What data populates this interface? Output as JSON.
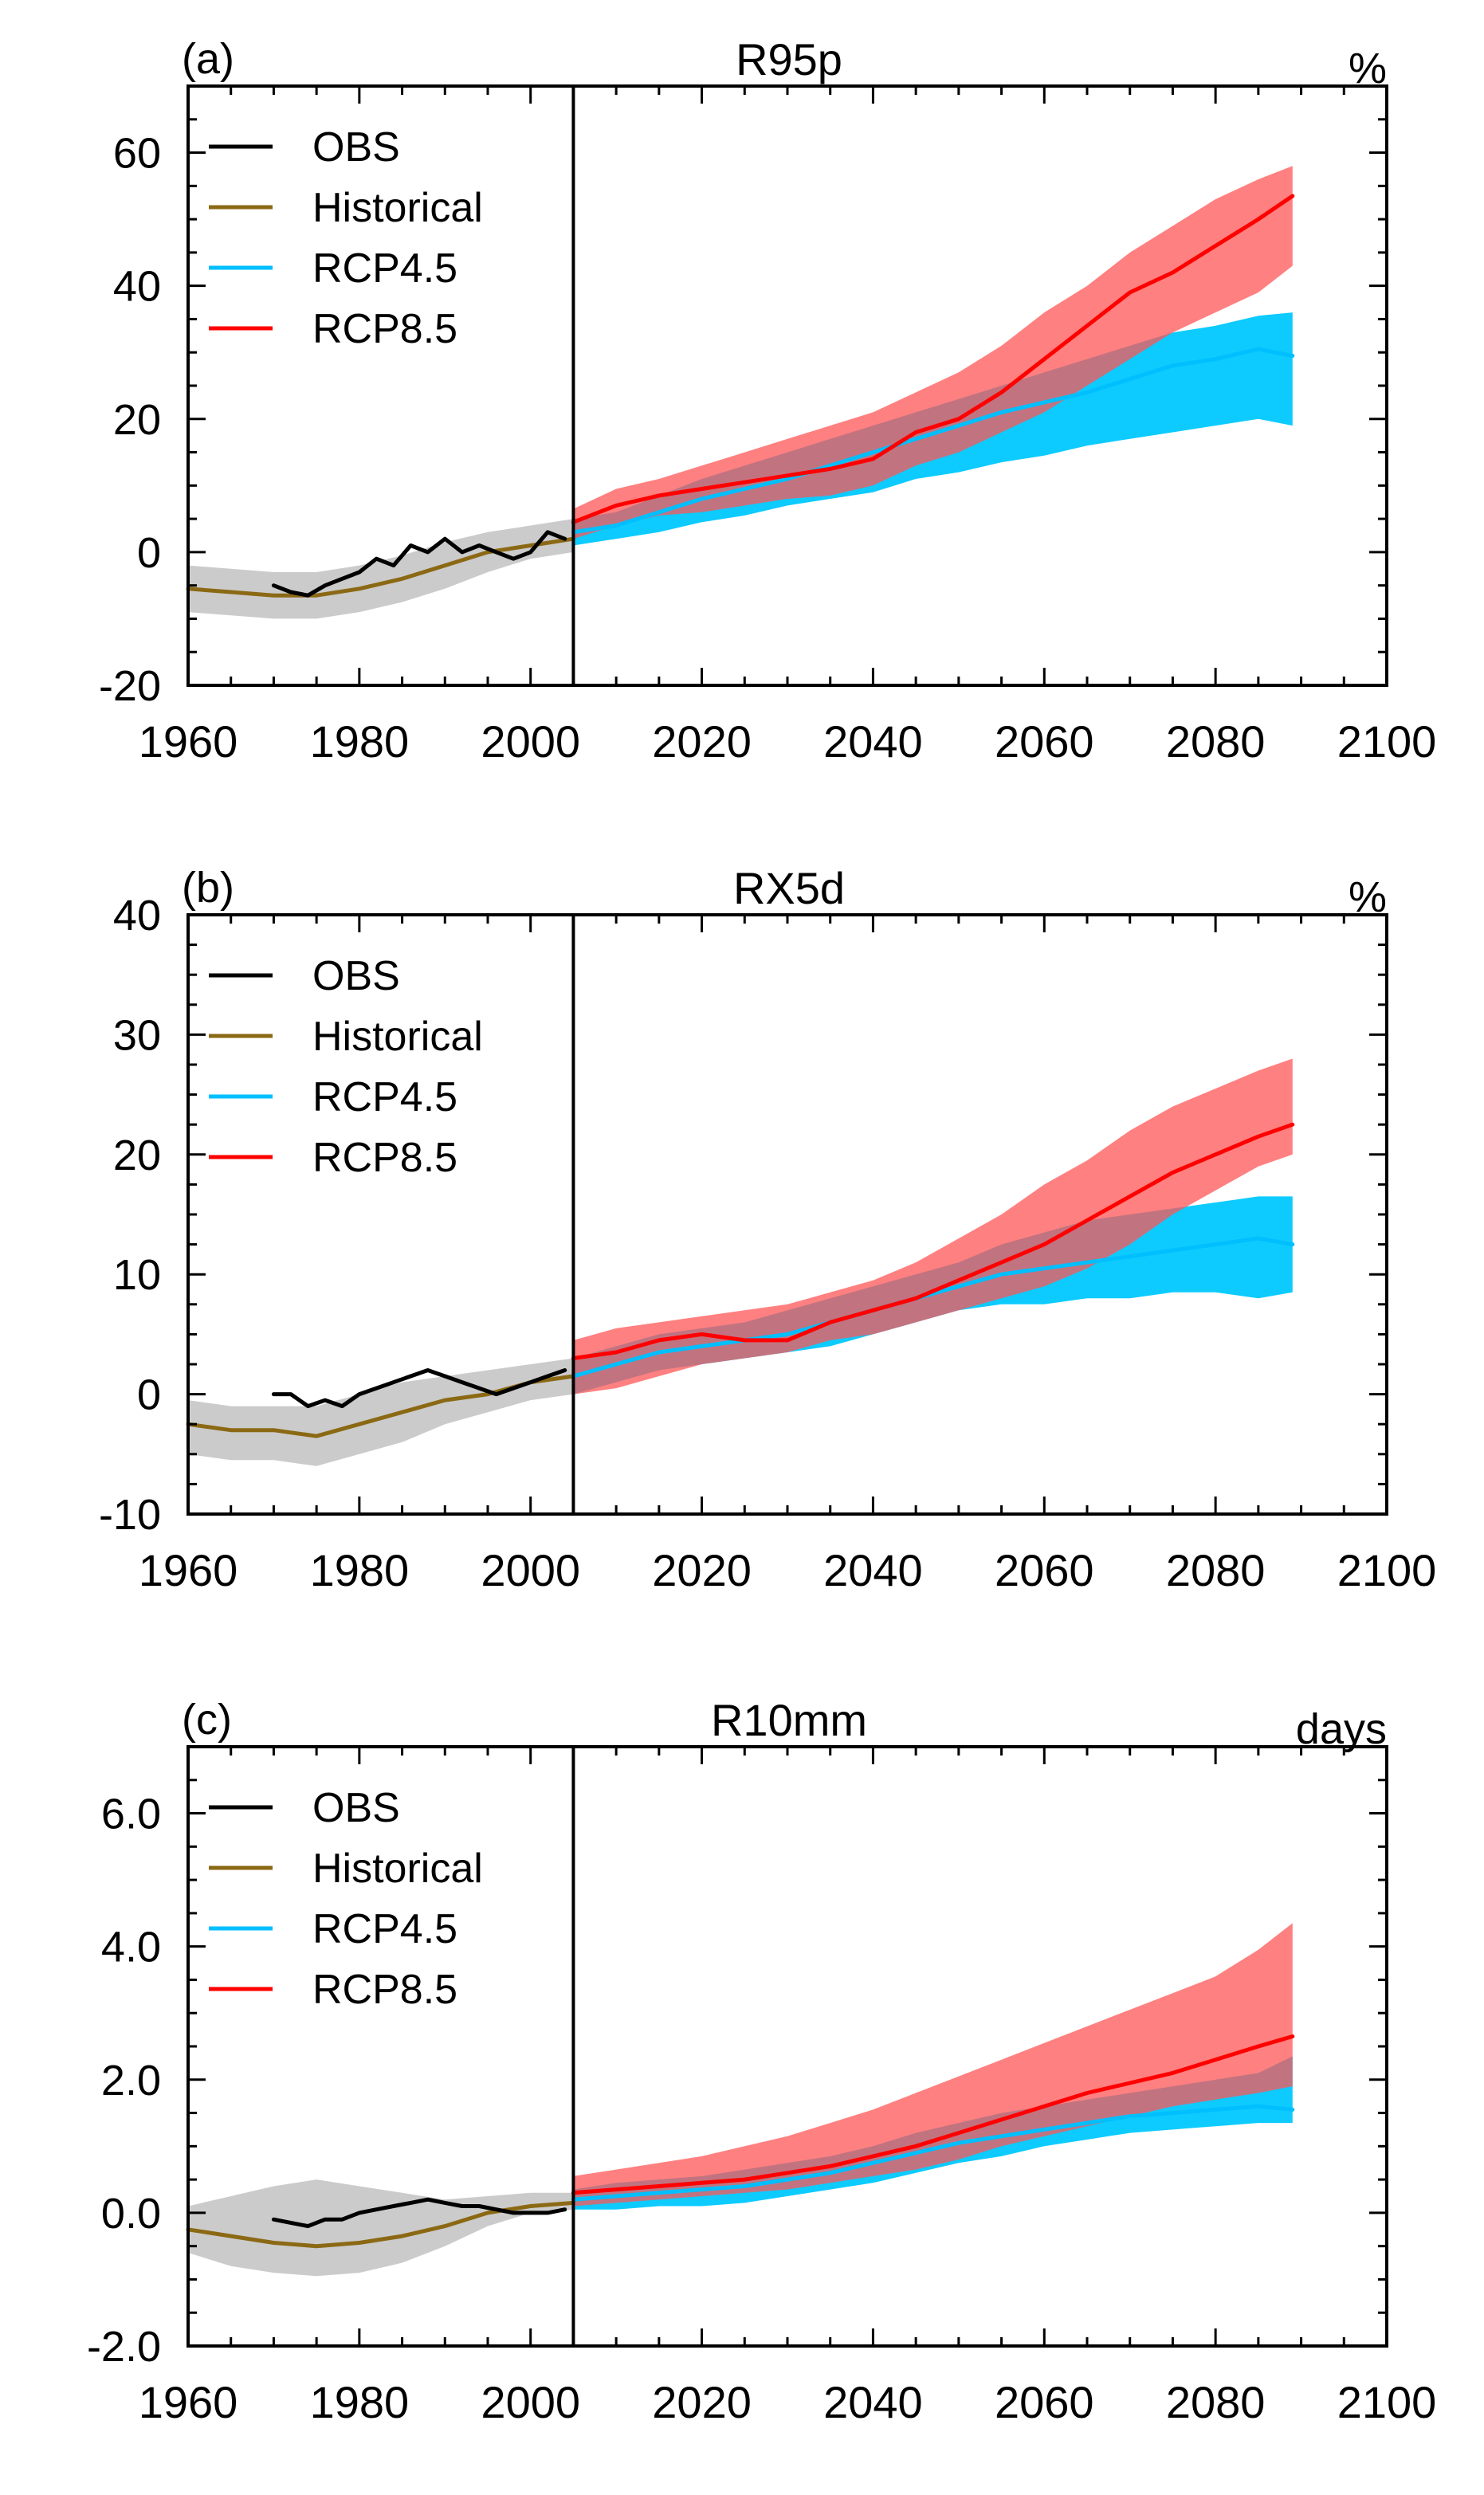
{
  "colors": {
    "obs": "#000000",
    "historical": "#8B6914",
    "rcp45": "#00BFFF",
    "rcp85": "#FF0000",
    "hist_band": "#BEBEBE",
    "rcp45_band": "#00C8FF",
    "rcp85_band": "#FF5555",
    "divider": "#000000"
  },
  "chart_data": [
    {
      "type": "line",
      "panel_label": "(a)",
      "title": "R95p",
      "unit": "%",
      "xlim": [
        1960,
        2100
      ],
      "ylim": [
        -20,
        70
      ],
      "x_ticks": [
        1960,
        1980,
        2000,
        2020,
        2040,
        2060,
        2080,
        2100
      ],
      "y_ticks": [
        -20,
        0,
        20,
        40,
        60
      ],
      "y_tick_labels": [
        "-20",
        "0",
        "20",
        "40",
        "60"
      ],
      "divider_year": 2005,
      "legend": [
        "OBS",
        "Historical",
        "RCP4.5",
        "RCP8.5"
      ],
      "legend_position": "top-left",
      "series": [
        {
          "name": "OBS",
          "x": [
            1970,
            1972,
            1974,
            1976,
            1978,
            1980,
            1982,
            1984,
            1986,
            1988,
            1990,
            1992,
            1994,
            1996,
            1998,
            2000,
            2002,
            2004
          ],
          "values": [
            -5,
            -6,
            -6.5,
            -5,
            -4,
            -3,
            -1,
            -2,
            1,
            0,
            2,
            0,
            1,
            0,
            -1,
            0,
            3,
            2
          ]
        },
        {
          "name": "Historical",
          "x": [
            1960,
            1965,
            1970,
            1975,
            1980,
            1985,
            1990,
            1995,
            2000,
            2005
          ],
          "values": [
            -5.5,
            -6,
            -6.5,
            -6.5,
            -5.5,
            -4,
            -2,
            0,
            1,
            2
          ]
        },
        {
          "name": "RCP4.5",
          "x": [
            2005,
            2010,
            2015,
            2020,
            2025,
            2030,
            2035,
            2040,
            2045,
            2050,
            2055,
            2060,
            2065,
            2070,
            2075,
            2080,
            2085,
            2089
          ],
          "values": [
            3,
            4,
            6,
            8,
            9.5,
            11,
            13,
            15,
            17,
            19,
            21,
            22.5,
            24,
            26,
            28,
            29,
            30.5,
            29.5
          ]
        },
        {
          "name": "RCP8.5",
          "x": [
            2005,
            2010,
            2015,
            2020,
            2025,
            2030,
            2035,
            2040,
            2045,
            2050,
            2055,
            2060,
            2065,
            2070,
            2075,
            2080,
            2085,
            2089
          ],
          "values": [
            4.5,
            7,
            8.5,
            9.5,
            10.5,
            11.5,
            12.5,
            14,
            18,
            20,
            24,
            29,
            34,
            39,
            42,
            46,
            50,
            53.5
          ]
        }
      ],
      "bands": [
        {
          "name": "Historical",
          "x": [
            1960,
            1965,
            1970,
            1975,
            1980,
            1985,
            1990,
            1995,
            2000,
            2005
          ],
          "lower": [
            -9,
            -9.5,
            -10,
            -10,
            -9,
            -7.5,
            -5.5,
            -3,
            -1,
            0
          ],
          "upper": [
            -2,
            -2.5,
            -3,
            -3,
            -2,
            -0.5,
            1.5,
            3,
            4,
            5
          ]
        },
        {
          "name": "RCP4.5",
          "x": [
            2005,
            2010,
            2015,
            2020,
            2025,
            2030,
            2035,
            2040,
            2045,
            2050,
            2055,
            2060,
            2065,
            2070,
            2075,
            2080,
            2085,
            2089
          ],
          "lower": [
            1,
            2,
            3,
            4.5,
            5.5,
            7,
            8,
            9,
            11,
            12,
            13.5,
            14.5,
            16,
            17,
            18,
            19,
            20,
            19
          ],
          "upper": [
            5,
            6,
            8.5,
            11,
            13,
            15,
            17,
            19,
            21,
            23,
            25,
            27,
            29,
            31,
            33,
            34,
            35.5,
            36
          ]
        },
        {
          "name": "RCP8.5",
          "x": [
            2005,
            2010,
            2015,
            2020,
            2025,
            2030,
            2035,
            2040,
            2045,
            2050,
            2055,
            2060,
            2065,
            2070,
            2075,
            2080,
            2085,
            2089
          ],
          "lower": [
            2,
            4,
            5.5,
            6,
            7,
            8,
            8.5,
            10,
            13,
            15,
            18,
            21,
            25,
            29,
            33,
            36,
            39,
            43
          ],
          "upper": [
            6.5,
            9.5,
            11,
            13,
            15,
            17,
            19,
            21,
            24,
            27,
            31,
            36,
            40,
            45,
            49,
            53,
            56,
            58
          ]
        }
      ]
    },
    {
      "type": "line",
      "panel_label": "(b)",
      "title": "RX5d",
      "unit": "%",
      "xlim": [
        1960,
        2100
      ],
      "ylim": [
        -10,
        40
      ],
      "x_ticks": [
        1960,
        1980,
        2000,
        2020,
        2040,
        2060,
        2080,
        2100
      ],
      "y_ticks": [
        -10,
        0,
        10,
        20,
        30,
        40
      ],
      "y_tick_labels": [
        "-10",
        "0",
        "10",
        "20",
        "30",
        "40"
      ],
      "divider_year": 2005,
      "legend": [
        "OBS",
        "Historical",
        "RCP4.5",
        "RCP8.5"
      ],
      "legend_position": "top-left",
      "series": [
        {
          "name": "OBS",
          "x": [
            1970,
            1972,
            1974,
            1976,
            1978,
            1980,
            1982,
            1984,
            1986,
            1988,
            1990,
            1992,
            1994,
            1996,
            1998,
            2000,
            2002,
            2004
          ],
          "values": [
            0,
            0,
            -1,
            -0.5,
            -1,
            0,
            0.5,
            1,
            1.5,
            2,
            1.5,
            1,
            0.5,
            0,
            0.5,
            1,
            1.5,
            2
          ]
        },
        {
          "name": "Historical",
          "x": [
            1960,
            1965,
            1970,
            1975,
            1980,
            1985,
            1990,
            1995,
            2000,
            2005
          ],
          "values": [
            -2.5,
            -3,
            -3,
            -3.5,
            -2.5,
            -1.5,
            -0.5,
            0,
            1,
            1.5
          ]
        },
        {
          "name": "RCP4.5",
          "x": [
            2005,
            2010,
            2015,
            2020,
            2025,
            2030,
            2035,
            2040,
            2045,
            2050,
            2055,
            2060,
            2065,
            2070,
            2075,
            2080,
            2085,
            2089
          ],
          "values": [
            1.5,
            2.5,
            3.5,
            4,
            4.5,
            5,
            6,
            7,
            8,
            9,
            10,
            10.5,
            11,
            11.5,
            12,
            12.5,
            13,
            12.5
          ]
        },
        {
          "name": "RCP8.5",
          "x": [
            2005,
            2010,
            2015,
            2020,
            2025,
            2030,
            2035,
            2040,
            2045,
            2050,
            2055,
            2060,
            2065,
            2070,
            2075,
            2080,
            2085,
            2089
          ],
          "values": [
            3,
            3.5,
            4.5,
            5,
            4.5,
            4.5,
            6,
            7,
            8,
            9.5,
            11,
            12.5,
            14.5,
            16.5,
            18.5,
            20,
            21.5,
            22.5
          ]
        }
      ],
      "bands": [
        {
          "name": "Historical",
          "x": [
            1960,
            1965,
            1970,
            1975,
            1980,
            1985,
            1990,
            1995,
            2000,
            2005
          ],
          "lower": [
            -5,
            -5.5,
            -5.5,
            -6,
            -5,
            -4,
            -2.5,
            -1.5,
            -0.5,
            0
          ],
          "upper": [
            -0.5,
            -1,
            -1,
            -1,
            0,
            1,
            1.5,
            2,
            2.5,
            3
          ]
        },
        {
          "name": "RCP4.5",
          "x": [
            2005,
            2010,
            2015,
            2020,
            2025,
            2030,
            2035,
            2040,
            2045,
            2050,
            2055,
            2060,
            2065,
            2070,
            2075,
            2080,
            2085,
            2089
          ],
          "lower": [
            0,
            1,
            2,
            2.5,
            3,
            3.5,
            4,
            5,
            6,
            7,
            7.5,
            7.5,
            8,
            8,
            8.5,
            8.5,
            8,
            8.5
          ],
          "upper": [
            3,
            4,
            5,
            5.5,
            6,
            7,
            8,
            9,
            10,
            11,
            12.5,
            13.5,
            14.5,
            15,
            15.5,
            16,
            16.5,
            16.5
          ]
        },
        {
          "name": "RCP8.5",
          "x": [
            2005,
            2010,
            2015,
            2020,
            2025,
            2030,
            2035,
            2040,
            2045,
            2050,
            2055,
            2060,
            2065,
            2070,
            2075,
            2080,
            2085,
            2089
          ],
          "lower": [
            0,
            0.5,
            1.5,
            2.5,
            3,
            3.5,
            4.5,
            5,
            6,
            7,
            8,
            9,
            10.5,
            12.5,
            15,
            17,
            19,
            20
          ],
          "upper": [
            4.5,
            5.5,
            6,
            6.5,
            7,
            7.5,
            8.5,
            9.5,
            11,
            13,
            15,
            17.5,
            19.5,
            22,
            24,
            25.5,
            27,
            28
          ]
        }
      ]
    },
    {
      "type": "line",
      "panel_label": "(c)",
      "title": "R10mm",
      "unit": "days",
      "xlim": [
        1960,
        2100
      ],
      "ylim": [
        -2,
        7
      ],
      "x_ticks": [
        1960,
        1980,
        2000,
        2020,
        2040,
        2060,
        2080,
        2100
      ],
      "y_ticks": [
        -2,
        0,
        2,
        4,
        6
      ],
      "y_tick_labels": [
        "-2.0",
        "0.0",
        "2.0",
        "4.0",
        "6.0"
      ],
      "divider_year": 2005,
      "legend": [
        "OBS",
        "Historical",
        "RCP4.5",
        "RCP8.5"
      ],
      "legend_position": "top-left",
      "series": [
        {
          "name": "OBS",
          "x": [
            1970,
            1972,
            1974,
            1976,
            1978,
            1980,
            1982,
            1984,
            1986,
            1988,
            1990,
            1992,
            1994,
            1996,
            1998,
            2000,
            2002,
            2004
          ],
          "values": [
            -0.1,
            -0.15,
            -0.2,
            -0.1,
            -0.1,
            0,
            0.05,
            0.1,
            0.15,
            0.2,
            0.15,
            0.1,
            0.1,
            0.05,
            0,
            0,
            0,
            0.05
          ]
        },
        {
          "name": "Historical",
          "x": [
            1960,
            1965,
            1970,
            1975,
            1980,
            1985,
            1990,
            1995,
            2000,
            2005
          ],
          "values": [
            -0.25,
            -0.35,
            -0.45,
            -0.5,
            -0.45,
            -0.35,
            -0.2,
            0,
            0.1,
            0.15
          ]
        },
        {
          "name": "RCP4.5",
          "x": [
            2005,
            2010,
            2015,
            2020,
            2025,
            2030,
            2035,
            2040,
            2045,
            2050,
            2055,
            2060,
            2065,
            2070,
            2075,
            2080,
            2085,
            2089
          ],
          "values": [
            0.2,
            0.25,
            0.3,
            0.35,
            0.4,
            0.5,
            0.6,
            0.75,
            0.9,
            1.05,
            1.15,
            1.25,
            1.35,
            1.45,
            1.5,
            1.55,
            1.6,
            1.55
          ]
        },
        {
          "name": "RCP8.5",
          "x": [
            2005,
            2010,
            2015,
            2020,
            2025,
            2030,
            2035,
            2040,
            2045,
            2050,
            2055,
            2060,
            2065,
            2070,
            2075,
            2080,
            2085,
            2089
          ],
          "values": [
            0.3,
            0.35,
            0.4,
            0.45,
            0.5,
            0.6,
            0.7,
            0.85,
            1.0,
            1.2,
            1.4,
            1.6,
            1.8,
            1.95,
            2.1,
            2.3,
            2.5,
            2.65
          ]
        }
      ],
      "bands": [
        {
          "name": "Historical",
          "x": [
            1960,
            1965,
            1970,
            1975,
            1980,
            1985,
            1990,
            1995,
            2000,
            2005
          ],
          "lower": [
            -0.6,
            -0.8,
            -0.9,
            -0.95,
            -0.9,
            -0.75,
            -0.5,
            -0.2,
            0,
            0.05
          ],
          "upper": [
            0.1,
            0.25,
            0.4,
            0.5,
            0.4,
            0.3,
            0.2,
            0.25,
            0.3,
            0.3
          ]
        },
        {
          "name": "RCP4.5",
          "x": [
            2005,
            2010,
            2015,
            2020,
            2025,
            2030,
            2035,
            2040,
            2045,
            2050,
            2055,
            2060,
            2065,
            2070,
            2075,
            2080,
            2085,
            2089
          ],
          "lower": [
            0.05,
            0.05,
            0.1,
            0.1,
            0.15,
            0.25,
            0.35,
            0.45,
            0.6,
            0.75,
            0.85,
            1.0,
            1.1,
            1.2,
            1.25,
            1.3,
            1.35,
            1.35
          ],
          "upper": [
            0.35,
            0.45,
            0.5,
            0.55,
            0.65,
            0.75,
            0.85,
            1.0,
            1.2,
            1.35,
            1.5,
            1.6,
            1.7,
            1.8,
            1.9,
            2.0,
            2.1,
            2.35
          ]
        },
        {
          "name": "RCP8.5",
          "x": [
            2005,
            2010,
            2015,
            2020,
            2025,
            2030,
            2035,
            2040,
            2045,
            2050,
            2055,
            2060,
            2065,
            2070,
            2075,
            2080,
            2085,
            2089
          ],
          "lower": [
            0.1,
            0.15,
            0.2,
            0.25,
            0.3,
            0.35,
            0.45,
            0.55,
            0.65,
            0.8,
            1.0,
            1.15,
            1.3,
            1.45,
            1.6,
            1.7,
            1.8,
            1.9
          ],
          "upper": [
            0.55,
            0.65,
            0.75,
            0.85,
            1.0,
            1.15,
            1.35,
            1.55,
            1.8,
            2.05,
            2.3,
            2.55,
            2.8,
            3.05,
            3.3,
            3.55,
            3.95,
            4.35
          ]
        }
      ]
    }
  ]
}
